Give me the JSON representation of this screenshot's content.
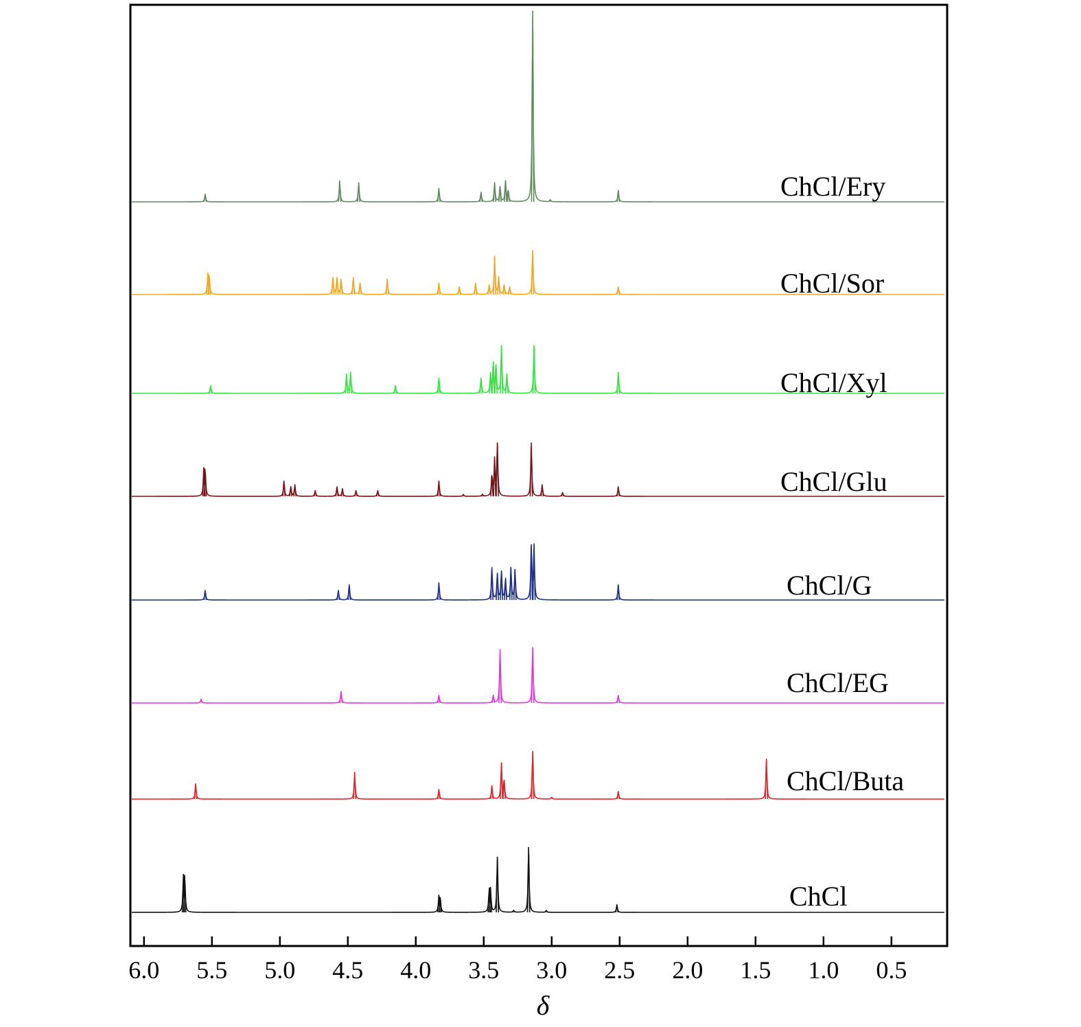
{
  "chart_data": {
    "type": "line",
    "xlabel": "δ",
    "ylabel": "",
    "xlim": [
      6.1,
      0.09
    ],
    "x_reversed": true,
    "grid": false,
    "ticks": [
      {
        "value": 6.0,
        "label": "6.0"
      },
      {
        "value": 5.5,
        "label": "5.5"
      },
      {
        "value": 5.0,
        "label": "5.0"
      },
      {
        "value": 4.5,
        "label": "4.5"
      },
      {
        "value": 4.0,
        "label": "4.0"
      },
      {
        "value": 3.5,
        "label": "3.5"
      },
      {
        "value": 3.0,
        "label": "3.0"
      },
      {
        "value": 2.5,
        "label": "2.5"
      },
      {
        "value": 2.0,
        "label": "2.0"
      },
      {
        "value": 1.5,
        "label": "1.5"
      },
      {
        "value": 1.0,
        "label": "1.0"
      },
      {
        "value": 0.5,
        "label": "0.5"
      }
    ],
    "series": [
      {
        "name": "ChCl/Ery",
        "color": "#5e8c5e",
        "peaks": [
          [
            5.55,
            0.04
          ],
          [
            4.56,
            0.11
          ],
          [
            4.42,
            0.1
          ],
          [
            3.83,
            0.07
          ],
          [
            3.52,
            0.05
          ],
          [
            3.42,
            0.1
          ],
          [
            3.38,
            0.08
          ],
          [
            3.34,
            0.11
          ],
          [
            3.32,
            0.06
          ],
          [
            3.14,
            1.0
          ],
          [
            3.01,
            0.01
          ],
          [
            2.51,
            0.06
          ]
        ]
      },
      {
        "name": "ChCl/Sor",
        "color": "#f0a81e",
        "peaks": [
          [
            5.53,
            0.1
          ],
          [
            5.52,
            0.09
          ],
          [
            4.61,
            0.09
          ],
          [
            4.58,
            0.09
          ],
          [
            4.55,
            0.08
          ],
          [
            4.46,
            0.09
          ],
          [
            4.41,
            0.06
          ],
          [
            4.21,
            0.08
          ],
          [
            3.83,
            0.06
          ],
          [
            3.68,
            0.04
          ],
          [
            3.56,
            0.06
          ],
          [
            3.46,
            0.05
          ],
          [
            3.42,
            0.2
          ],
          [
            3.39,
            0.09
          ],
          [
            3.35,
            0.05
          ],
          [
            3.31,
            0.04
          ],
          [
            3.14,
            0.23
          ],
          [
            2.51,
            0.04
          ]
        ]
      },
      {
        "name": "ChCl/Xyl",
        "color": "#2ee83a",
        "peaks": [
          [
            5.51,
            0.04
          ],
          [
            4.51,
            0.1
          ],
          [
            4.48,
            0.11
          ],
          [
            4.15,
            0.04
          ],
          [
            3.83,
            0.08
          ],
          [
            3.52,
            0.08
          ],
          [
            3.45,
            0.1
          ],
          [
            3.43,
            0.16
          ],
          [
            3.41,
            0.15
          ],
          [
            3.37,
            0.25
          ],
          [
            3.33,
            0.1
          ],
          [
            3.13,
            0.25
          ],
          [
            2.51,
            0.11
          ]
        ]
      },
      {
        "name": "ChCl/Glu",
        "color": "#7a1318",
        "peaks": [
          [
            5.56,
            0.13
          ],
          [
            5.55,
            0.13
          ],
          [
            4.97,
            0.08
          ],
          [
            4.92,
            0.05
          ],
          [
            4.89,
            0.06
          ],
          [
            4.74,
            0.03
          ],
          [
            4.58,
            0.05
          ],
          [
            4.54,
            0.04
          ],
          [
            4.44,
            0.03
          ],
          [
            4.28,
            0.03
          ],
          [
            3.83,
            0.08
          ],
          [
            3.65,
            0.01
          ],
          [
            3.51,
            0.01
          ],
          [
            3.44,
            0.11
          ],
          [
            3.42,
            0.19
          ],
          [
            3.4,
            0.28
          ],
          [
            3.15,
            0.28
          ],
          [
            3.07,
            0.06
          ],
          [
            2.92,
            0.02
          ],
          [
            2.51,
            0.05
          ]
        ]
      },
      {
        "name": "ChCl/G",
        "color": "#1e2f8c",
        "peaks": [
          [
            5.55,
            0.05
          ],
          [
            4.57,
            0.05
          ],
          [
            4.49,
            0.08
          ],
          [
            3.83,
            0.09
          ],
          [
            3.44,
            0.17
          ],
          [
            3.4,
            0.14
          ],
          [
            3.37,
            0.15
          ],
          [
            3.34,
            0.11
          ],
          [
            3.3,
            0.17
          ],
          [
            3.27,
            0.16
          ],
          [
            3.15,
            0.29
          ],
          [
            3.13,
            0.28
          ],
          [
            2.51,
            0.08
          ]
        ]
      },
      {
        "name": "ChCl/EG",
        "color": "#e434e4",
        "peaks": [
          [
            5.58,
            0.02
          ],
          [
            4.55,
            0.06
          ],
          [
            3.83,
            0.04
          ],
          [
            3.43,
            0.04
          ],
          [
            3.38,
            0.28
          ],
          [
            3.14,
            0.29
          ],
          [
            2.51,
            0.04
          ]
        ]
      },
      {
        "name": "ChCl/Buta",
        "color": "#e81f24",
        "peaks": [
          [
            5.62,
            0.08
          ],
          [
            4.45,
            0.14
          ],
          [
            3.83,
            0.05
          ],
          [
            3.44,
            0.07
          ],
          [
            3.37,
            0.19
          ],
          [
            3.35,
            0.1
          ],
          [
            3.14,
            0.25
          ],
          [
            3.0,
            0.01
          ],
          [
            2.51,
            0.04
          ],
          [
            1.42,
            0.21
          ]
        ]
      },
      {
        "name": "ChCl",
        "color": "#111111",
        "peaks": [
          [
            5.71,
            0.17
          ],
          [
            5.7,
            0.17
          ],
          [
            3.83,
            0.08
          ],
          [
            3.82,
            0.07
          ],
          [
            3.46,
            0.11
          ],
          [
            3.45,
            0.11
          ],
          [
            3.4,
            0.29
          ],
          [
            3.28,
            0.01
          ],
          [
            3.17,
            0.34
          ],
          [
            3.04,
            0.01
          ],
          [
            2.52,
            0.04
          ]
        ]
      }
    ]
  }
}
